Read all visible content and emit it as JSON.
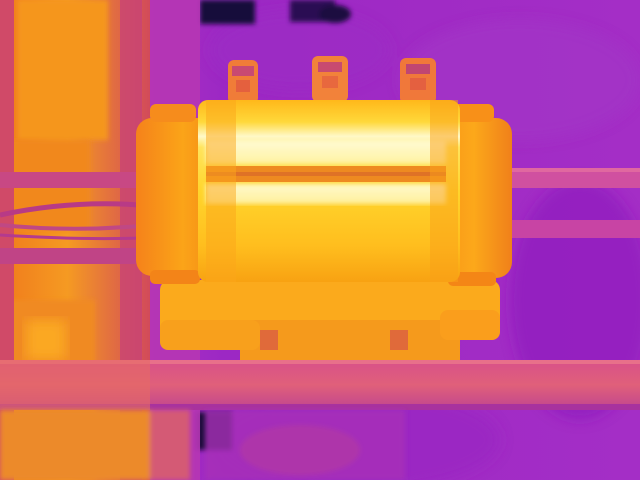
{
  "image": {
    "kind": "thermal-camera-photo",
    "palette": "ironbow",
    "subject": "electric-motor",
    "colors": {
      "cold": "#9a1ec2",
      "cool": "#c03cc8",
      "warm": "#e8482a",
      "hot": "#f99a10",
      "hotter": "#ffcf2e",
      "hottest": "#fffbd0",
      "shadow": "#1a0a3a"
    }
  }
}
